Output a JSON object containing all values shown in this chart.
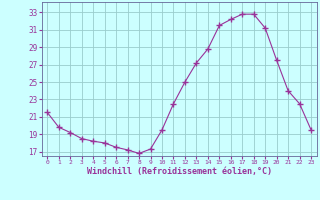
{
  "hours": [
    0,
    1,
    2,
    3,
    4,
    5,
    6,
    7,
    8,
    9,
    10,
    11,
    12,
    13,
    14,
    15,
    16,
    17,
    18,
    19,
    20,
    21,
    22,
    23
  ],
  "values": [
    21.5,
    19.8,
    19.2,
    18.5,
    18.2,
    18.0,
    17.5,
    17.2,
    16.8,
    17.3,
    19.5,
    22.5,
    25.0,
    27.2,
    28.8,
    31.5,
    32.2,
    32.8,
    32.8,
    31.2,
    27.5,
    24.0,
    22.5,
    19.5
  ],
  "line_color": "#993399",
  "marker": "+",
  "marker_size": 4,
  "background_color": "#ccffff",
  "grid_color": "#99cccc",
  "xlabel": "Windchill (Refroidissement éolien,°C)",
  "xlabel_color": "#993399",
  "tick_color": "#993399",
  "yticks": [
    17,
    19,
    21,
    23,
    25,
    27,
    29,
    31,
    33
  ],
  "xticks": [
    0,
    1,
    2,
    3,
    4,
    5,
    6,
    7,
    8,
    9,
    10,
    11,
    12,
    13,
    14,
    15,
    16,
    17,
    18,
    19,
    20,
    21,
    22,
    23
  ],
  "ylim": [
    16.5,
    34.2
  ],
  "xlim": [
    -0.5,
    23.5
  ],
  "figsize": [
    3.2,
    2.0
  ],
  "dpi": 100
}
